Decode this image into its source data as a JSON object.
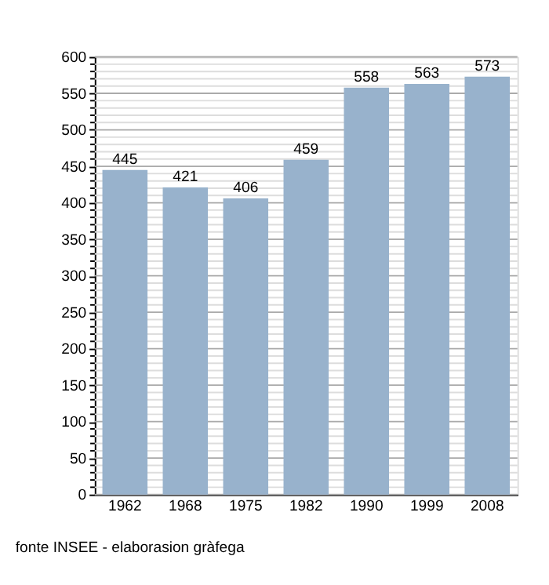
{
  "chart_data": {
    "type": "bar",
    "categories": [
      "1962",
      "1968",
      "1975",
      "1982",
      "1990",
      "1999",
      "2008"
    ],
    "values": [
      445,
      421,
      406,
      459,
      558,
      563,
      573
    ],
    "color": "#98b2cc",
    "data_labels": true,
    "ylim": [
      0,
      600
    ],
    "yticks": [
      0,
      {
        "value": 10,
        "label": null
      },
      {
        "value": 20,
        "label": null
      },
      {
        "value": 30,
        "label": null
      },
      {
        "value": 40,
        "label": null
      },
      50,
      {
        "value": 60,
        "label": null
      },
      {
        "value": 70,
        "label": null
      },
      {
        "value": 80,
        "label": null
      },
      {
        "value": 90,
        "label": null
      },
      100,
      {
        "value": 110,
        "label": null
      },
      {
        "value": 120,
        "label": null
      },
      {
        "value": 130,
        "label": null
      },
      {
        "value": 140,
        "label": null
      },
      150,
      {
        "value": 160,
        "label": null
      },
      {
        "value": 170,
        "label": null
      },
      {
        "value": 180,
        "label": null
      },
      {
        "value": 190,
        "label": null
      },
      200,
      {
        "value": 210,
        "label": null
      },
      {
        "value": 220,
        "label": null
      },
      {
        "value": 230,
        "label": null
      },
      {
        "value": 240,
        "label": null
      },
      250,
      {
        "value": 260,
        "label": null
      },
      {
        "value": 270,
        "label": null
      },
      {
        "value": 280,
        "label": null
      },
      {
        "value": 290,
        "label": null
      },
      300,
      {
        "value": 310,
        "label": null
      },
      {
        "value": 320,
        "label": null
      },
      {
        "value": 330,
        "label": null
      },
      {
        "value": 340,
        "label": null
      },
      350,
      {
        "value": 360,
        "label": null
      },
      {
        "value": 370,
        "label": null
      },
      {
        "value": 380,
        "label": null
      },
      {
        "value": 390,
        "label": null
      },
      400,
      {
        "value": 410,
        "label": null
      },
      {
        "value": 420,
        "label": null
      },
      {
        "value": 430,
        "label": null
      },
      {
        "value": 440,
        "label": null
      },
      450,
      {
        "value": 460,
        "label": null
      },
      {
        "value": 470,
        "label": null
      },
      {
        "value": 480,
        "label": null
      },
      {
        "value": 490,
        "label": null
      },
      500,
      {
        "value": 510,
        "label": null
      },
      {
        "value": 520,
        "label": null
      },
      {
        "value": 530,
        "label": null
      },
      {
        "value": 540,
        "label": null
      },
      550,
      {
        "value": 560,
        "label": null
      },
      {
        "value": 570,
        "label": null
      },
      {
        "value": 580,
        "label": null
      },
      {
        "value": 590,
        "label": null
      },
      600
    ],
    "grid": "y",
    "annotations": [
      "fonte INSEE - elaborasion gràfega"
    ]
  }
}
